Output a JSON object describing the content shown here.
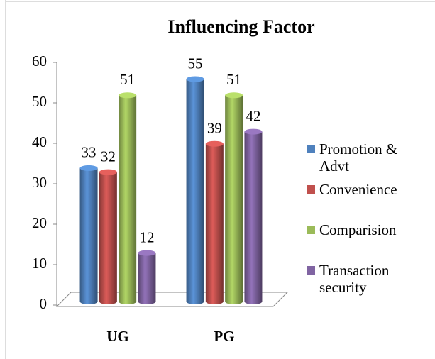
{
  "chart_data": {
    "type": "bar3d",
    "title": "Influencing Factor",
    "categories": [
      "UG",
      "PG"
    ],
    "series": [
      {
        "name": "Promotion & Advt",
        "color": "#4f81bd",
        "values": [
          33,
          55
        ]
      },
      {
        "name": "Convenience",
        "color": "#c0504d",
        "values": [
          32,
          39
        ]
      },
      {
        "name": "Comparision",
        "color": "#9bbb59",
        "values": [
          51,
          51
        ]
      },
      {
        "name": "Transaction security",
        "color": "#8064a2",
        "values": [
          12,
          42
        ]
      }
    ],
    "ylim": [
      0,
      60
    ],
    "yticks": [
      0,
      10,
      20,
      30,
      40,
      50,
      60
    ],
    "legend": "right"
  }
}
